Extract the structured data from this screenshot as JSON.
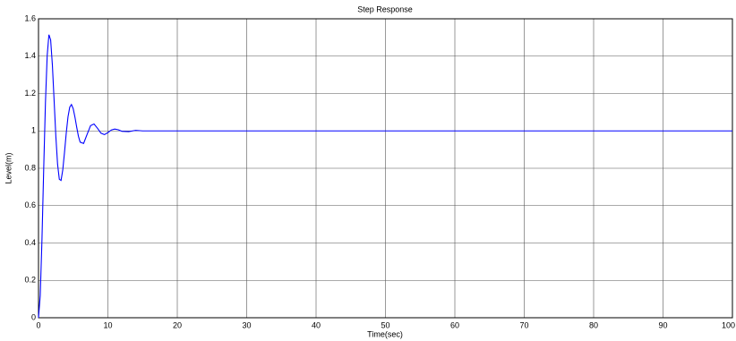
{
  "chart_data": {
    "type": "line",
    "title": "Step Response",
    "xlabel": "Time(sec)",
    "ylabel": "Level(m)",
    "x": [
      0,
      0.25,
      0.5,
      0.75,
      1,
      1.25,
      1.5,
      1.75,
      2,
      2.25,
      2.5,
      2.75,
      3,
      3.25,
      3.5,
      3.75,
      4,
      4.25,
      4.5,
      4.75,
      5,
      5.25,
      5.5,
      5.75,
      6,
      6.5,
      7,
      7.5,
      8,
      8.5,
      9,
      9.5,
      10,
      10.5,
      11,
      11.5,
      12,
      13,
      14,
      15,
      20,
      100
    ],
    "values": [
      0,
      0.119,
      0.419,
      0.797,
      1.15,
      1.402,
      1.515,
      1.487,
      1.353,
      1.162,
      0.97,
      0.821,
      0.741,
      0.735,
      0.792,
      0.886,
      0.989,
      1.075,
      1.127,
      1.141,
      1.119,
      1.074,
      1.021,
      0.972,
      0.94,
      0.933,
      0.981,
      1.028,
      1.037,
      1.014,
      0.988,
      0.98,
      0.991,
      1.005,
      1.01,
      1.006,
      0.998,
      0.996,
      1.003,
      1,
      1,
      1
    ],
    "color": "#0000ff",
    "xlim": [
      0,
      100
    ],
    "xticks": [
      0,
      10,
      20,
      30,
      40,
      50,
      60,
      70,
      80,
      90,
      100
    ],
    "ylim": [
      0,
      1.6
    ],
    "yticks": [
      0,
      0.2,
      0.4,
      0.6,
      0.8,
      1,
      1.2,
      1.4,
      1.6
    ],
    "grid": true
  }
}
